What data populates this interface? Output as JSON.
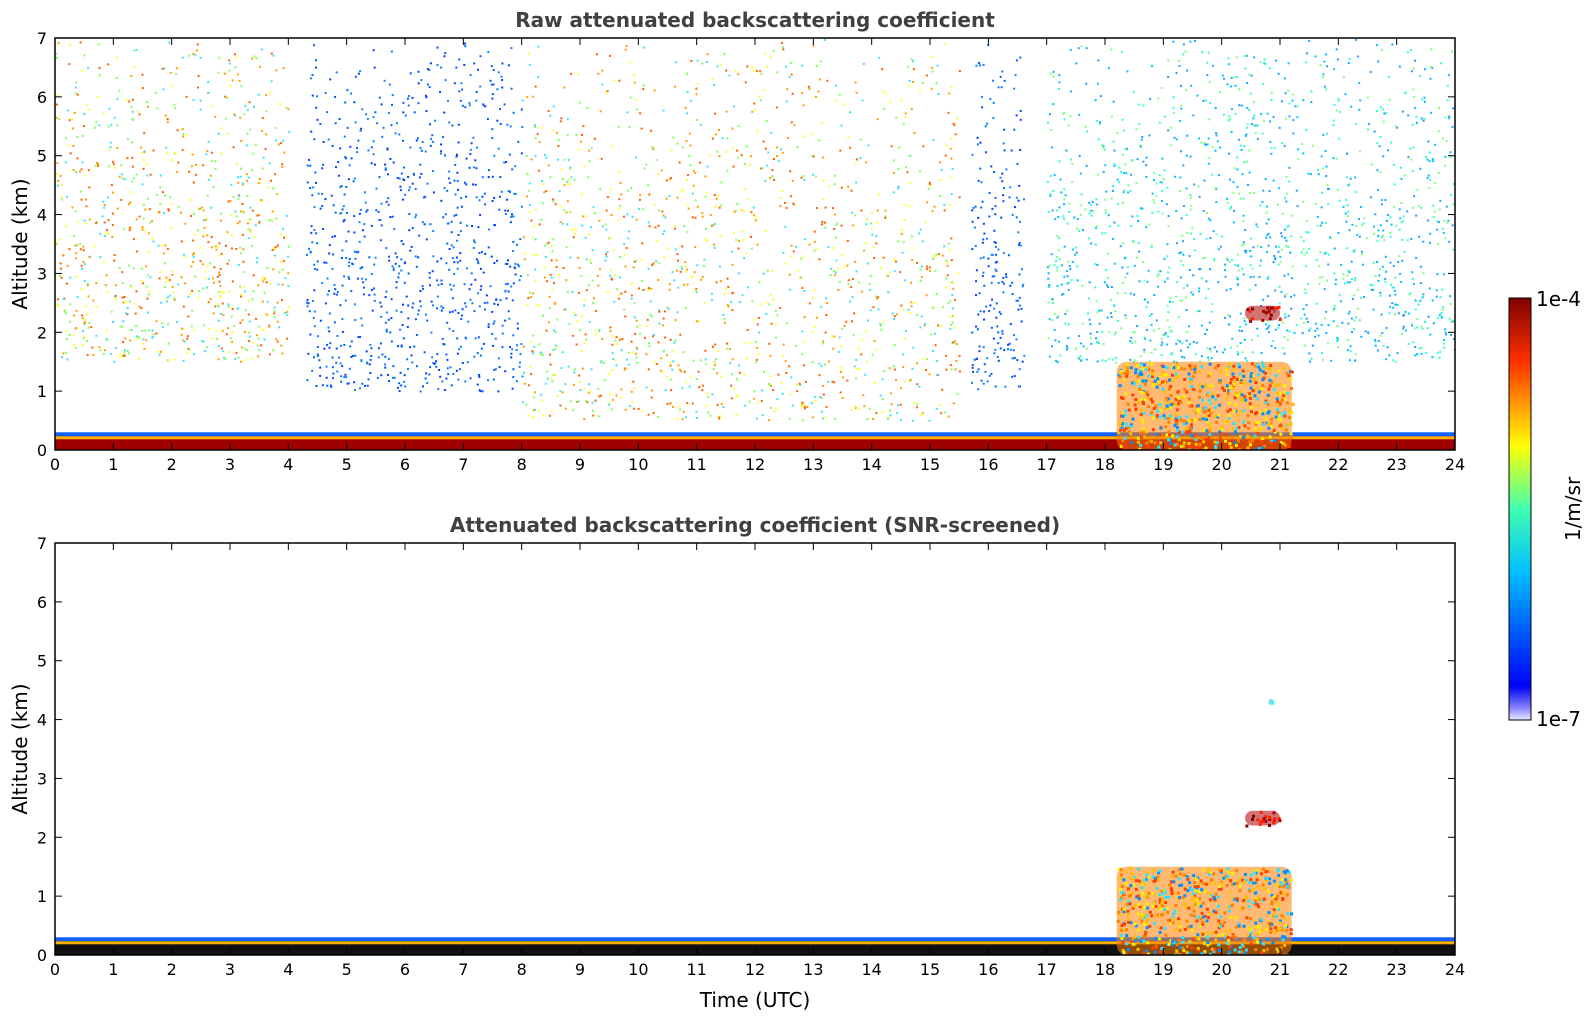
{
  "chart_data": [
    {
      "type": "heatmap",
      "title": "Raw attenuated backscattering coefficient",
      "xlabel": "",
      "ylabel": "Altitude (km)",
      "xlim": [
        0,
        24
      ],
      "ylim": [
        0,
        7
      ],
      "x_ticks": [
        0,
        1,
        2,
        3,
        4,
        5,
        6,
        7,
        8,
        9,
        10,
        11,
        12,
        13,
        14,
        15,
        16,
        17,
        18,
        19,
        20,
        21,
        22,
        23,
        24
      ],
      "y_ticks": [
        0,
        1,
        2,
        3,
        4,
        5,
        6,
        7
      ],
      "regions": [
        {
          "x": [
            0,
            24
          ],
          "y": [
            0,
            0.25
          ],
          "level": "high",
          "desc": "surface layer"
        },
        {
          "x": [
            0,
            4
          ],
          "y": [
            1.5,
            7
          ],
          "level": "medium-high",
          "desc": "sky noise"
        },
        {
          "x": [
            4.3,
            8
          ],
          "y": [
            1,
            7
          ],
          "level": "low",
          "desc": "sky noise"
        },
        {
          "x": [
            8,
            15.5
          ],
          "y": [
            0.5,
            7
          ],
          "level": "medium-high",
          "desc": "sky noise"
        },
        {
          "x": [
            15.7,
            16.6
          ],
          "y": [
            1,
            7
          ],
          "level": "low",
          "desc": "sky noise"
        },
        {
          "x": [
            17,
            24
          ],
          "y": [
            1.5,
            7
          ],
          "level": "medium",
          "desc": "sky noise"
        },
        {
          "x": [
            18.2,
            21.2
          ],
          "y": [
            0,
            1.5
          ],
          "level": "high",
          "desc": "boundary layer aerosol"
        },
        {
          "x": [
            20.4,
            21
          ],
          "y": [
            2.2,
            2.45
          ],
          "level": "very-high",
          "desc": "cloud"
        }
      ]
    },
    {
      "type": "heatmap",
      "title": "Attenuated backscattering coefficient (SNR-screened)",
      "xlabel": "Time (UTC)",
      "ylabel": "Altitude (km)",
      "xlim": [
        0,
        24
      ],
      "ylim": [
        0,
        7
      ],
      "x_ticks": [
        0,
        1,
        2,
        3,
        4,
        5,
        6,
        7,
        8,
        9,
        10,
        11,
        12,
        13,
        14,
        15,
        16,
        17,
        18,
        19,
        20,
        21,
        22,
        23,
        24
      ],
      "y_ticks": [
        0,
        1,
        2,
        3,
        4,
        5,
        6,
        7
      ],
      "regions": [
        {
          "x": [
            0,
            24
          ],
          "y": [
            0,
            0.25
          ],
          "level": "high",
          "desc": "surface layer"
        },
        {
          "x": [
            18.2,
            21.2
          ],
          "y": [
            0,
            1.5
          ],
          "level": "high",
          "desc": "boundary layer aerosol"
        },
        {
          "x": [
            20.4,
            21
          ],
          "y": [
            2.2,
            2.45
          ],
          "level": "very-high",
          "desc": "cloud"
        },
        {
          "x": [
            20.8,
            20.9
          ],
          "y": [
            4.25,
            4.35
          ],
          "level": "medium",
          "desc": "isolated signal"
        }
      ]
    }
  ],
  "colorbar": {
    "max_label": "1e-4",
    "min_label": "1e-7",
    "unit_label": "1/m/sr",
    "colormap": "jet",
    "scale": "log"
  }
}
